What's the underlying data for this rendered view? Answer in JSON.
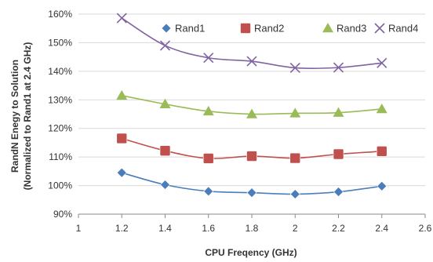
{
  "chart_data": {
    "type": "line",
    "x": [
      1.2,
      1.4,
      1.6,
      1.8,
      2.0,
      2.2,
      2.4
    ],
    "xlabel": "CPU Freqency (GHz)",
    "ylabel_line1": "RandN Enegy to Solution",
    "ylabel_line2": "(Normalized to Rand1 at 2.4 GHz)",
    "xlim": [
      1,
      2.6
    ],
    "ylim": [
      90,
      160
    ],
    "x_ticks": [
      "1",
      "1.2",
      "1.4",
      "1.6",
      "1.8",
      "2",
      "2.2",
      "2.4",
      "2.6"
    ],
    "y_ticks": [
      "90%",
      "100%",
      "110%",
      "120%",
      "130%",
      "140%",
      "150%",
      "160%"
    ],
    "grid": "horizontal",
    "legend_position": "top-right",
    "series": [
      {
        "name": "Rand1",
        "marker": "diamond",
        "color": "#4a7ebb",
        "values": [
          104.5,
          100.3,
          98.0,
          97.5,
          97.0,
          97.8,
          99.8
        ]
      },
      {
        "name": "Rand2",
        "marker": "square",
        "color": "#c0504d",
        "values": [
          116.5,
          112.2,
          109.5,
          110.3,
          109.6,
          111.0,
          112.0
        ]
      },
      {
        "name": "Rand3",
        "marker": "triangle",
        "color": "#9bbb59",
        "values": [
          131.5,
          128.5,
          126.0,
          125.0,
          125.3,
          125.5,
          126.8
        ]
      },
      {
        "name": "Rand4",
        "marker": "x",
        "color": "#8064a2",
        "values": [
          158.6,
          149.0,
          144.7,
          143.5,
          141.2,
          141.3,
          142.9
        ]
      }
    ]
  }
}
